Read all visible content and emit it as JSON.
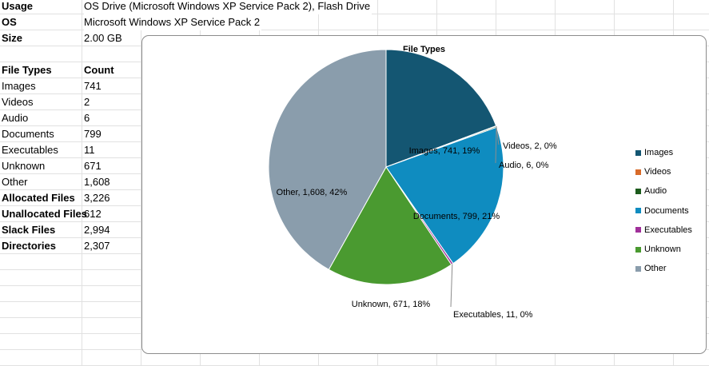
{
  "sheet": {
    "rows": [
      {
        "label": "Usage",
        "label_bold": true,
        "value": "OS Drive (Microsoft Windows XP Service Pack 2), Flash Drive",
        "spill": true
      },
      {
        "label": "OS",
        "label_bold": true,
        "value": "Microsoft Windows XP Service Pack 2",
        "spill": true
      },
      {
        "label": "Size",
        "label_bold": true,
        "value": "2.00 GB"
      },
      {
        "label": "",
        "value": ""
      },
      {
        "label": "File Types",
        "label_bold": true,
        "value": "Count",
        "value_bold": true
      },
      {
        "label": "Images",
        "value": "741"
      },
      {
        "label": "Videos",
        "value": "2"
      },
      {
        "label": "Audio",
        "value": "6"
      },
      {
        "label": "Documents",
        "value": "799"
      },
      {
        "label": "Executables",
        "value": "11"
      },
      {
        "label": "Unknown",
        "value": "671"
      },
      {
        "label": "Other",
        "value": "1,608"
      },
      {
        "label": "Allocated Files",
        "label_bold": true,
        "value": "3,226"
      },
      {
        "label": "Unallocated Files",
        "label_bold": true,
        "value": "612"
      },
      {
        "label": "Slack Files",
        "label_bold": true,
        "value": "2,994"
      },
      {
        "label": "Directories",
        "label_bold": true,
        "value": "2,307"
      }
    ]
  },
  "chart_data": {
    "type": "pie",
    "title": "File Types",
    "legend_position": "right",
    "slices": [
      {
        "name": "Images",
        "value": 741,
        "label": "Images, 741, 19%",
        "color": "#145672"
      },
      {
        "name": "Videos",
        "value": 2,
        "label": "Videos, 2, 0%",
        "color": "#d86b2a"
      },
      {
        "name": "Audio",
        "value": 6,
        "label": "Audio, 6, 0%",
        "color": "#1c5b1c"
      },
      {
        "name": "Documents",
        "value": 799,
        "label": "Documents, 799, 21%",
        "color": "#0f8cc0"
      },
      {
        "name": "Executables",
        "value": 11,
        "label": "Executables, 11, 0%",
        "color": "#a0309a"
      },
      {
        "name": "Unknown",
        "value": 671,
        "label": "Unknown, 671, 18%",
        "color": "#4a9a30"
      },
      {
        "name": "Other",
        "value": 1608,
        "label": "Other, 1,608, 42%",
        "color": "#8a9dac"
      }
    ]
  }
}
